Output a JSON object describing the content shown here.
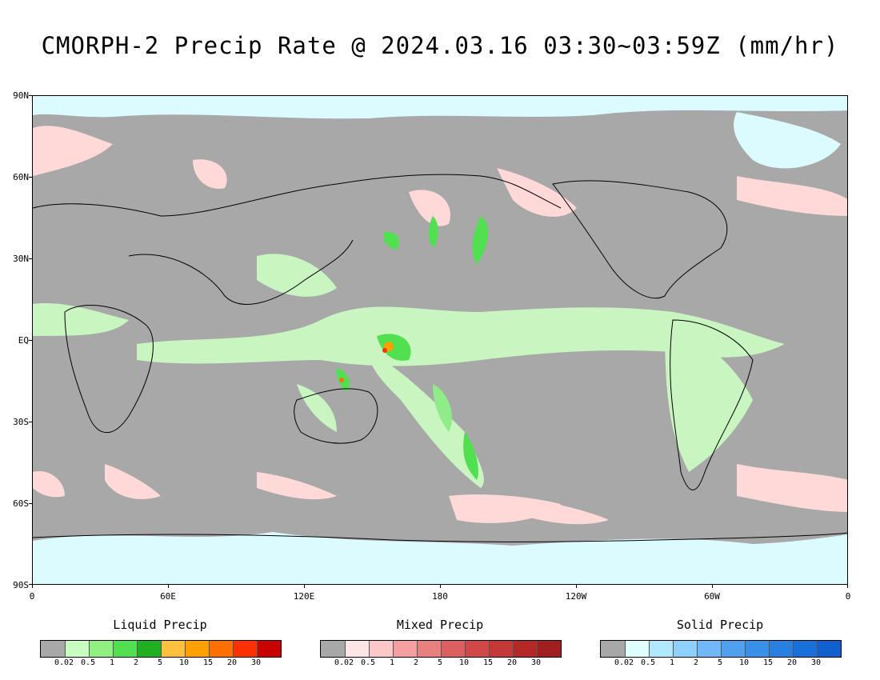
{
  "title": "CMORPH-2 Precip Rate @ 2024.03.16 03:30~03:59Z (mm/hr)",
  "lat_labels": [
    "90N",
    "60N",
    "30N",
    "EQ",
    "30S",
    "60S",
    "90S"
  ],
  "lon_labels": [
    "0",
    "60E",
    "120E",
    "180",
    "120W",
    "60W",
    "0"
  ],
  "colors": {
    "no_precip": "#a8a8a8",
    "ocean_liquid_light": "#c8f5c0",
    "ocean_liquid_mid": "#90ec88",
    "mixed_light": "#ffd8d8",
    "solid_light": "#dcfbff"
  },
  "legends": [
    {
      "title": "Liquid Precip",
      "colors": [
        "#a8a8a8",
        "#c8ffc0",
        "#90f080",
        "#50e050",
        "#20b020",
        "#ffc040",
        "#ffa000",
        "#ff7000",
        "#ff3000",
        "#c80000"
      ],
      "ticks": [
        "0.02",
        "0.5",
        "1",
        "2",
        "5",
        "10",
        "15",
        "20",
        "30"
      ]
    },
    {
      "title": "Mixed Precip",
      "colors": [
        "#a8a8a8",
        "#ffe6e6",
        "#ffc8c8",
        "#f5a0a0",
        "#e88080",
        "#dc6060",
        "#d04848",
        "#c43838",
        "#b42828",
        "#a02020"
      ],
      "ticks": [
        "0.02",
        "0.5",
        "1",
        "2",
        "5",
        "10",
        "15",
        "20",
        "30"
      ]
    },
    {
      "title": "Solid Precip",
      "colors": [
        "#a8a8a8",
        "#e0ffff",
        "#b0e8ff",
        "#90d0ff",
        "#70b8f8",
        "#50a0f0",
        "#3890e8",
        "#2880e0",
        "#1870d8",
        "#1060d0"
      ],
      "ticks": [
        "0.02",
        "0.5",
        "1",
        "2",
        "5",
        "10",
        "15",
        "20",
        "30"
      ]
    }
  ]
}
